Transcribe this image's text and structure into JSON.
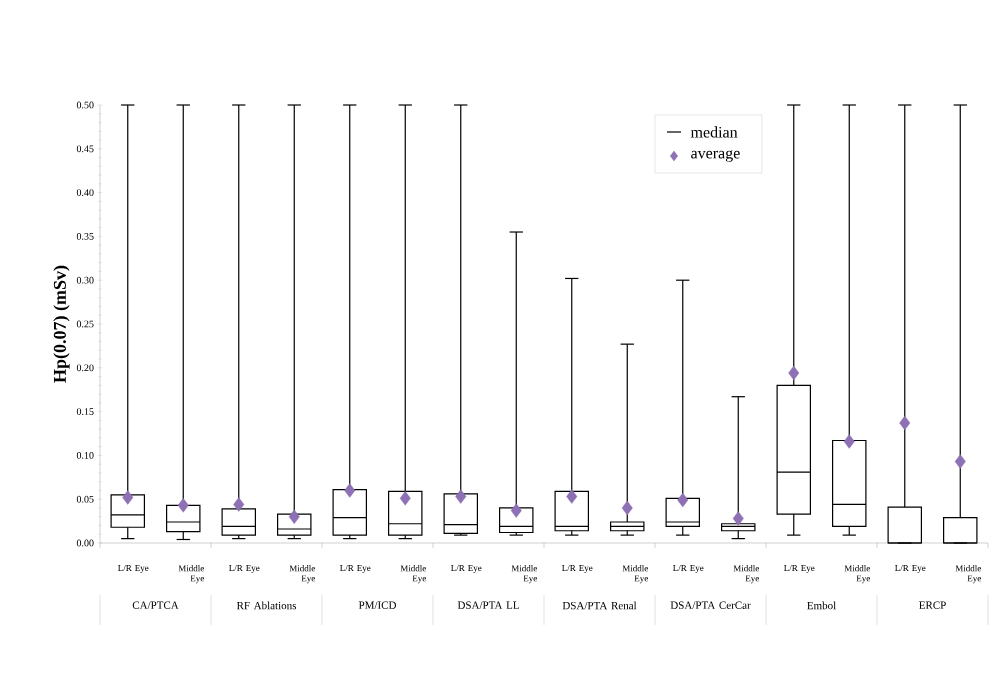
{
  "chart_data": {
    "type": "box",
    "ylabel": "Hp(0.07)  (mSv)",
    "categories": [
      "L/R Eye",
      "Middle Eye",
      "L/R Eye",
      "Middle Eye",
      "L/R Eye",
      "Middle Eye",
      "L/R Eye",
      "Middle Eye",
      "L/R Eye",
      "Middle Eye",
      "L/R Eye",
      "Middle Eye",
      "L/R Eye",
      "Middle Eye",
      "L/R Eye",
      "Middle Eye"
    ],
    "annotations": [
      "CA/PTCA",
      "RF Ablations",
      "PM/ICD",
      "DSA/PTA LL",
      "DSA/PTA Renal",
      "DSA/PTA CerCar",
      "Embol",
      "ERCP"
    ],
    "ylim": [
      0,
      0.5
    ],
    "yticks": [
      {
        "value": 0,
        "label": "0.00"
      },
      {
        "value": 0.05,
        "label": "0.05"
      },
      {
        "value": 0.1,
        "label": "0.10"
      },
      {
        "value": 0.15,
        "label": "0.15"
      },
      {
        "value": 0.2,
        "label": "0.20"
      },
      {
        "value": 0.25,
        "label": "0.25"
      },
      {
        "value": 0.3,
        "label": "0.30"
      },
      {
        "value": 0.35,
        "label": "0.35"
      },
      {
        "value": 0.4,
        "label": "0.40"
      },
      {
        "value": 0.45,
        "label": "0.45"
      },
      {
        "value": 0.5,
        "label": "0.50"
      }
    ],
    "legend": "top right",
    "series": [
      {
        "name": "median",
        "color": "#000000",
        "boxes": [
          {
            "low": 0.005,
            "q1": 0.018,
            "median": 0.032,
            "q3": 0.055,
            "high": 0.5
          },
          {
            "low": 0.004,
            "q1": 0.013,
            "median": 0.024,
            "q3": 0.043,
            "high": 0.5
          },
          {
            "low": 0.005,
            "q1": 0.009,
            "median": 0.019,
            "q3": 0.039,
            "high": 0.5
          },
          {
            "low": 0.005,
            "q1": 0.009,
            "median": 0.016,
            "q3": 0.033,
            "high": 0.5
          },
          {
            "low": 0.005,
            "q1": 0.009,
            "median": 0.029,
            "q3": 0.061,
            "high": 0.5
          },
          {
            "low": 0.005,
            "q1": 0.009,
            "median": 0.022,
            "q3": 0.059,
            "high": 0.5
          },
          {
            "low": 0.009,
            "q1": 0.011,
            "median": 0.021,
            "q3": 0.056,
            "high": 0.5
          },
          {
            "low": 0.009,
            "q1": 0.012,
            "median": 0.019,
            "q3": 0.04,
            "high": 0.355
          },
          {
            "low": 0.009,
            "q1": 0.014,
            "median": 0.019,
            "q3": 0.059,
            "high": 0.302
          },
          {
            "low": 0.009,
            "q1": 0.014,
            "median": 0.019,
            "q3": 0.024,
            "high": 0.227
          },
          {
            "low": 0.009,
            "q1": 0.019,
            "median": 0.024,
            "q3": 0.051,
            "high": 0.3
          },
          {
            "low": 0.005,
            "q1": 0.014,
            "median": 0.019,
            "q3": 0.022,
            "high": 0.167
          },
          {
            "low": 0.009,
            "q1": 0.033,
            "median": 0.081,
            "q3": 0.18,
            "high": 0.5
          },
          {
            "low": 0.009,
            "q1": 0.019,
            "median": 0.044,
            "q3": 0.117,
            "high": 0.5
          },
          {
            "low": 0,
            "q1": 0,
            "median": 0,
            "q3": 0.041,
            "high": 0.5
          },
          {
            "low": 0,
            "q1": 0,
            "median": 0,
            "q3": 0.029,
            "high": 0.5
          }
        ]
      },
      {
        "name": "average",
        "type": "scatter",
        "color": "#8e70b4",
        "marker": "diamond",
        "values": [
          0.052,
          0.043,
          0.044,
          0.03,
          0.06,
          0.051,
          0.053,
          0.037,
          0.053,
          0.04,
          0.049,
          0.028,
          0.194,
          0.116,
          0.137,
          0.093
        ]
      }
    ]
  }
}
